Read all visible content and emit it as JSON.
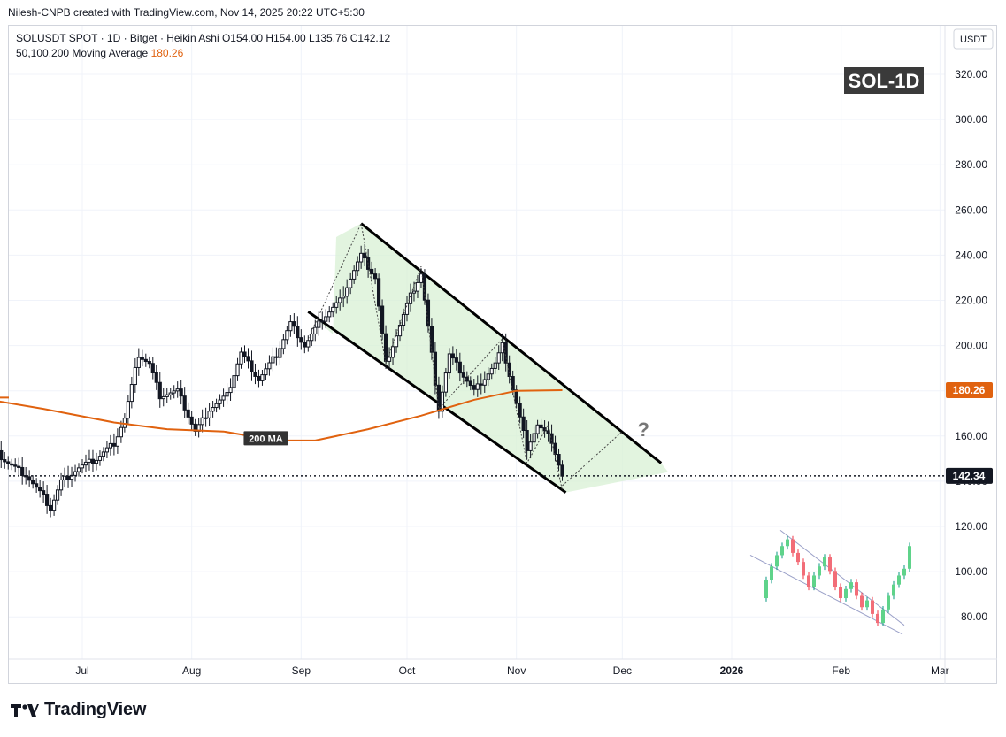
{
  "header": {
    "creator": "Nilesh-CNPB created with TradingView.com, Nov 14, 2025 20:22 UTC+5:30"
  },
  "legend": {
    "line1": "SOLUSDT SPOT · 1D · Bitget · Heikin Ashi  O154.00  H154.00  L135.76  C142.12",
    "line2_label": "50,100,200 Moving Average",
    "line2_value": "180.26"
  },
  "brand": {
    "name": "TradingView"
  },
  "colors": {
    "up": "#089981",
    "down": "#f23645",
    "ma": "#e0620f",
    "channel_fill": "#d8f0d4",
    "axis_text": "#131722"
  },
  "chart_data": {
    "type": "line",
    "title": "SOL-1D",
    "symbol": "SOLUSDT SPOT",
    "interval": "1D",
    "exchange": "Bitget",
    "style": "Heikin Ashi",
    "ohlc": {
      "open": 154.0,
      "high": 154.0,
      "low": 135.76,
      "close": 142.12
    },
    "currency": "USDT",
    "y_ticks": [
      "320.00",
      "300.00",
      "280.00",
      "260.00",
      "240.00",
      "220.00",
      "200.00",
      "180.00",
      "160.00",
      "140.00",
      "120.00",
      "100.00",
      "80.00"
    ],
    "ylim": [
      73,
      339
    ],
    "x_ticks": [
      "Jul",
      "Aug",
      "Sep",
      "Oct",
      "Nov",
      "Dec",
      "2026",
      "Feb",
      "Mar"
    ],
    "x_tick_dates": [
      "2025-07-01",
      "2025-08-01",
      "2025-09-01",
      "2025-10-01",
      "2025-11-01",
      "2025-12-01",
      "2026-01-01",
      "2026-02-01",
      "2026-03-01"
    ],
    "xlim": [
      "2025-06-01",
      "2026-03-10"
    ],
    "grid": true,
    "price_series": {
      "dates": [
        "2025-06-01",
        "2025-06-05",
        "2025-06-10",
        "2025-06-15",
        "2025-06-20",
        "2025-06-22",
        "2025-06-25",
        "2025-06-30",
        "2025-07-05",
        "2025-07-10",
        "2025-07-13",
        "2025-07-17",
        "2025-07-20",
        "2025-07-23",
        "2025-07-28",
        "2025-08-02",
        "2025-08-06",
        "2025-08-11",
        "2025-08-15",
        "2025-08-20",
        "2025-08-25",
        "2025-08-29",
        "2025-09-02",
        "2025-09-07",
        "2025-09-12",
        "2025-09-18",
        "2025-09-22",
        "2025-09-25",
        "2025-10-02",
        "2025-10-05",
        "2025-10-10",
        "2025-10-13",
        "2025-10-20",
        "2025-10-26",
        "2025-10-28",
        "2025-11-04",
        "2025-11-07",
        "2025-11-11",
        "2025-11-14"
      ],
      "values": [
        166,
        155,
        148,
        143,
        133,
        128,
        140,
        146,
        150,
        157,
        168,
        196,
        192,
        178,
        180,
        162,
        172,
        178,
        197,
        185,
        196,
        210,
        200,
        212,
        220,
        240,
        230,
        192,
        222,
        232,
        172,
        196,
        180,
        192,
        200,
        155,
        165,
        158,
        142.12
      ]
    },
    "moving_average": {
      "name": "200 MA",
      "value": 180.26,
      "dates": [
        "2025-06-01",
        "2025-06-20",
        "2025-07-10",
        "2025-07-25",
        "2025-08-10",
        "2025-08-25",
        "2025-09-05",
        "2025-09-20",
        "2025-10-05",
        "2025-10-20",
        "2025-11-01",
        "2025-11-14"
      ],
      "values": [
        177,
        172,
        166,
        163,
        162,
        158,
        158,
        163,
        169,
        176,
        180,
        180.26
      ]
    },
    "channel": {
      "upper": {
        "start": {
          "x": "2025-09-18",
          "y": 254
        },
        "end": {
          "x": "2025-12-12",
          "y": 148
        }
      },
      "lower": {
        "start": {
          "x": "2025-09-03",
          "y": 215
        },
        "end": {
          "x": "2025-11-15",
          "y": 135
        }
      }
    },
    "projection": {
      "path": [
        {
          "x": "2025-11-14",
          "y": 138
        },
        {
          "x": "2025-12-01",
          "y": 162
        }
      ],
      "annotation": "?"
    },
    "current_price": {
      "value": 142.34,
      "label": "142.34"
    },
    "ma_price_label": "180.26",
    "annotations": [
      "200 MA",
      "?"
    ],
    "inset_pattern": {
      "candles": [
        {
          "o": 100,
          "c": 108,
          "d": "up"
        },
        {
          "o": 108,
          "c": 114,
          "d": "up"
        },
        {
          "o": 114,
          "c": 119,
          "d": "up"
        },
        {
          "o": 119,
          "c": 123,
          "d": "up"
        },
        {
          "o": 123,
          "c": 126,
          "d": "up"
        },
        {
          "o": 126,
          "c": 120,
          "d": "down"
        },
        {
          "o": 120,
          "c": 116,
          "d": "down"
        },
        {
          "o": 116,
          "c": 110,
          "d": "down"
        },
        {
          "o": 110,
          "c": 105,
          "d": "down"
        },
        {
          "o": 105,
          "c": 110,
          "d": "up"
        },
        {
          "o": 110,
          "c": 114,
          "d": "up"
        },
        {
          "o": 114,
          "c": 118,
          "d": "up"
        },
        {
          "o": 118,
          "c": 112,
          "d": "down"
        },
        {
          "o": 112,
          "c": 105,
          "d": "down"
        },
        {
          "o": 105,
          "c": 100,
          "d": "down"
        },
        {
          "o": 100,
          "c": 104,
          "d": "up"
        },
        {
          "o": 104,
          "c": 107,
          "d": "up"
        },
        {
          "o": 107,
          "c": 101,
          "d": "down"
        },
        {
          "o": 101,
          "c": 96,
          "d": "down"
        },
        {
          "o": 96,
          "c": 99,
          "d": "up"
        },
        {
          "o": 99,
          "c": 93,
          "d": "down"
        },
        {
          "o": 93,
          "c": 89,
          "d": "down"
        },
        {
          "o": 89,
          "c": 95,
          "d": "up"
        },
        {
          "o": 95,
          "c": 101,
          "d": "up"
        },
        {
          "o": 101,
          "c": 106,
          "d": "up"
        },
        {
          "o": 106,
          "c": 110,
          "d": "up"
        },
        {
          "o": 110,
          "c": 113,
          "d": "up"
        },
        {
          "o": 113,
          "c": 123,
          "d": "up"
        }
      ]
    }
  }
}
